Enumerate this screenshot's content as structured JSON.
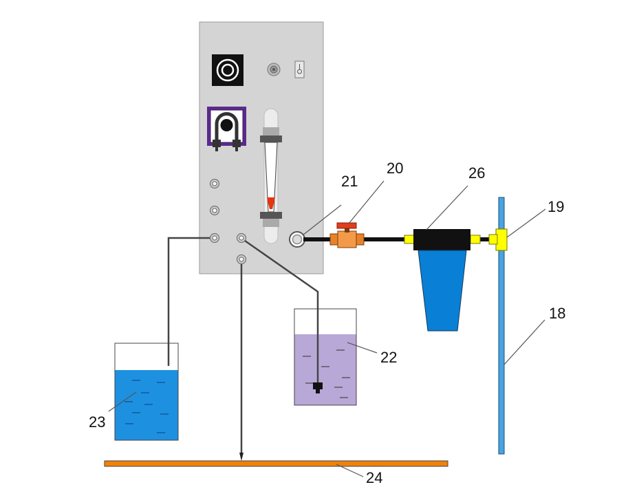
{
  "labels": {
    "l18": "18",
    "l19": "19",
    "l20": "20",
    "l21": "21",
    "l22": "22",
    "l23": "23",
    "l24": "24",
    "l26": "26"
  },
  "colors": {
    "panel": "#d4d4d4",
    "pump": "#5a2a8c",
    "valve": "#e8822a",
    "valve_handle": "#e03c1e",
    "filter_housing": "#111111",
    "filter_bowl": "#0a7fd6",
    "fitting": "#ffff00",
    "pipe": "#4aa3df",
    "tube": "#444444",
    "water": "#1e90e0",
    "solution": "#b8a8d8",
    "floor_strip": "#f0820a"
  }
}
